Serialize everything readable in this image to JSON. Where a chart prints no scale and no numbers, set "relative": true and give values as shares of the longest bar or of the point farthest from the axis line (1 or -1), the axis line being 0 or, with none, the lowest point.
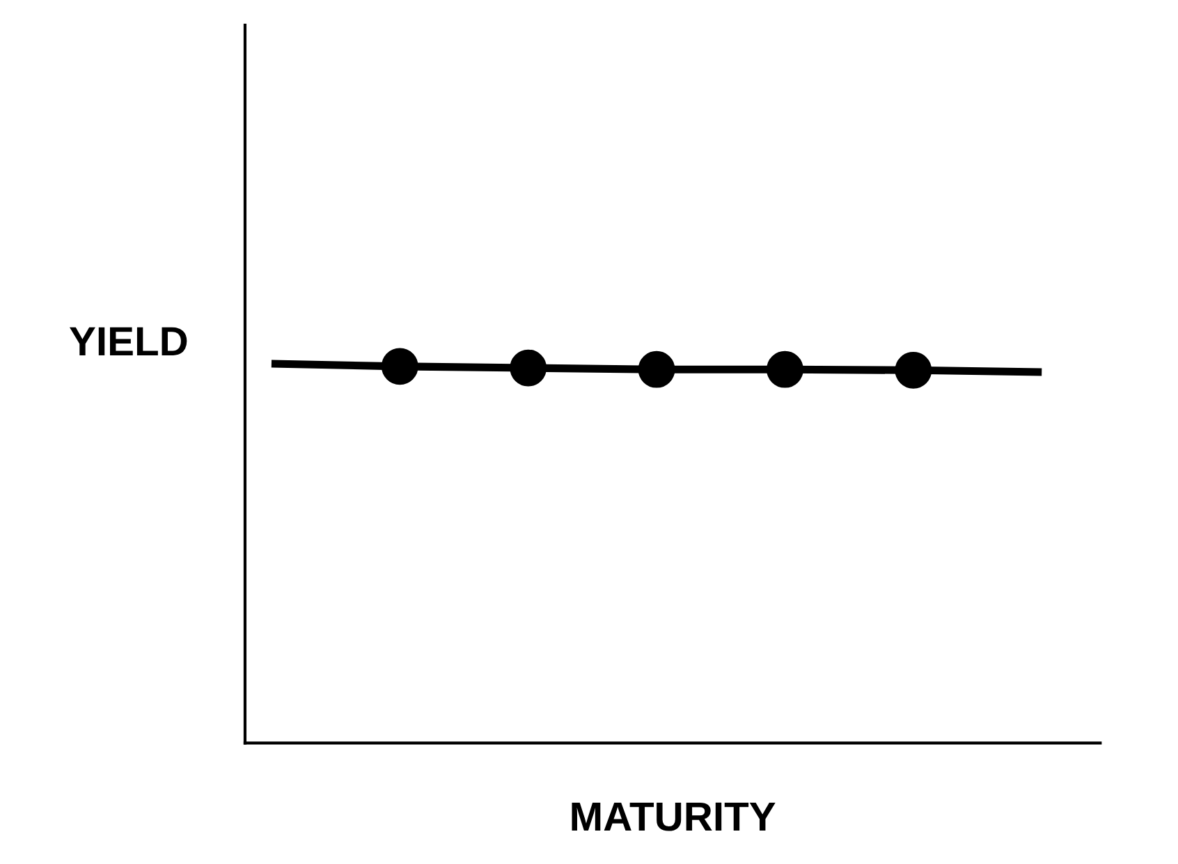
{
  "chart_data": {
    "type": "line",
    "xlabel": "MATURITY",
    "ylabel": "YIELD",
    "relative": true,
    "tick_labels": false,
    "categories": [
      null,
      null,
      null,
      null,
      null,
      null,
      null
    ],
    "series": [
      {
        "color": "#000000",
        "marker": [
          "none",
          "circle",
          "circle",
          "circle",
          "circle",
          "circle",
          "none"
        ],
        "values": [
          1,
          0.993,
          0.989,
          0.985,
          0.985,
          0.983,
          0.978
        ]
      }
    ]
  }
}
